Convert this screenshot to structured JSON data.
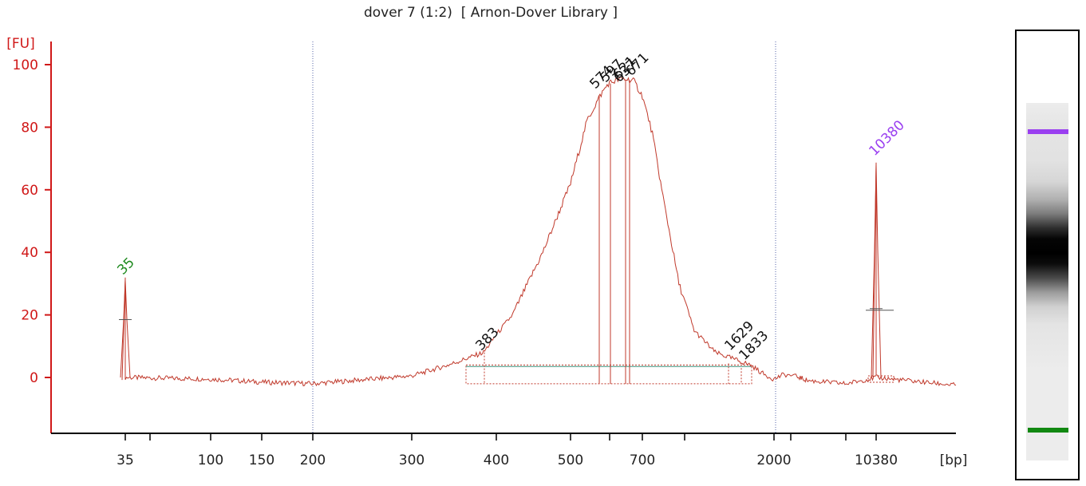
{
  "title": "dover 7 (1:2)  [ Arnon-Dover Library ]",
  "chart_data": {
    "type": "line",
    "title": "dover 7 (1:2)  [ Arnon-Dover Library ]",
    "xlabel": "[bp]",
    "ylabel": "[FU]",
    "ylim": [
      -17,
      106
    ],
    "yticks": [
      0,
      20,
      40,
      60,
      80,
      100
    ],
    "x_tick_labels": [
      "35",
      "100",
      "150",
      "200",
      "300",
      "400",
      "500",
      "700",
      "2000",
      "10380"
    ],
    "marker_peaks": [
      {
        "label": "35",
        "fu": 31,
        "color": "#1f8a1f"
      },
      {
        "label": "10380",
        "fu": 68,
        "color": "#9a3ff0"
      }
    ],
    "sample_peak_labels": [
      "383",
      "574",
      "597",
      "621",
      "637",
      "671",
      "1629",
      "1833"
    ],
    "series": [
      {
        "color": "#c0392b",
        "points": [
          [
            35,
            0
          ],
          [
            35,
            31
          ],
          [
            35,
            0
          ],
          [
            100,
            -0.5
          ],
          [
            150,
            -1.5
          ],
          [
            200,
            -2
          ],
          [
            300,
            0.5
          ],
          [
            340,
            4
          ],
          [
            383,
            8
          ],
          [
            420,
            20
          ],
          [
            460,
            40
          ],
          [
            500,
            62
          ],
          [
            540,
            82
          ],
          [
            574,
            90
          ],
          [
            597,
            94
          ],
          [
            621,
            95
          ],
          [
            637,
            95.5
          ],
          [
            671,
            95
          ],
          [
            700,
            90
          ],
          [
            750,
            78
          ],
          [
            800,
            60
          ],
          [
            900,
            30
          ],
          [
            1000,
            15
          ],
          [
            1200,
            8
          ],
          [
            1629,
            4
          ],
          [
            1833,
            1
          ],
          [
            2000,
            -0.5
          ],
          [
            2200,
            1
          ],
          [
            3000,
            -1
          ],
          [
            6000,
            -2
          ],
          [
            10380,
            0
          ],
          [
            10380,
            68
          ],
          [
            10380,
            0
          ],
          [
            12000,
            -1
          ],
          [
            15000,
            -2.5
          ]
        ]
      }
    ],
    "grid": false,
    "legend": "none"
  },
  "gel": {
    "upper_marker_color": "#9a3ff0",
    "lower_marker_color": "#118811"
  }
}
